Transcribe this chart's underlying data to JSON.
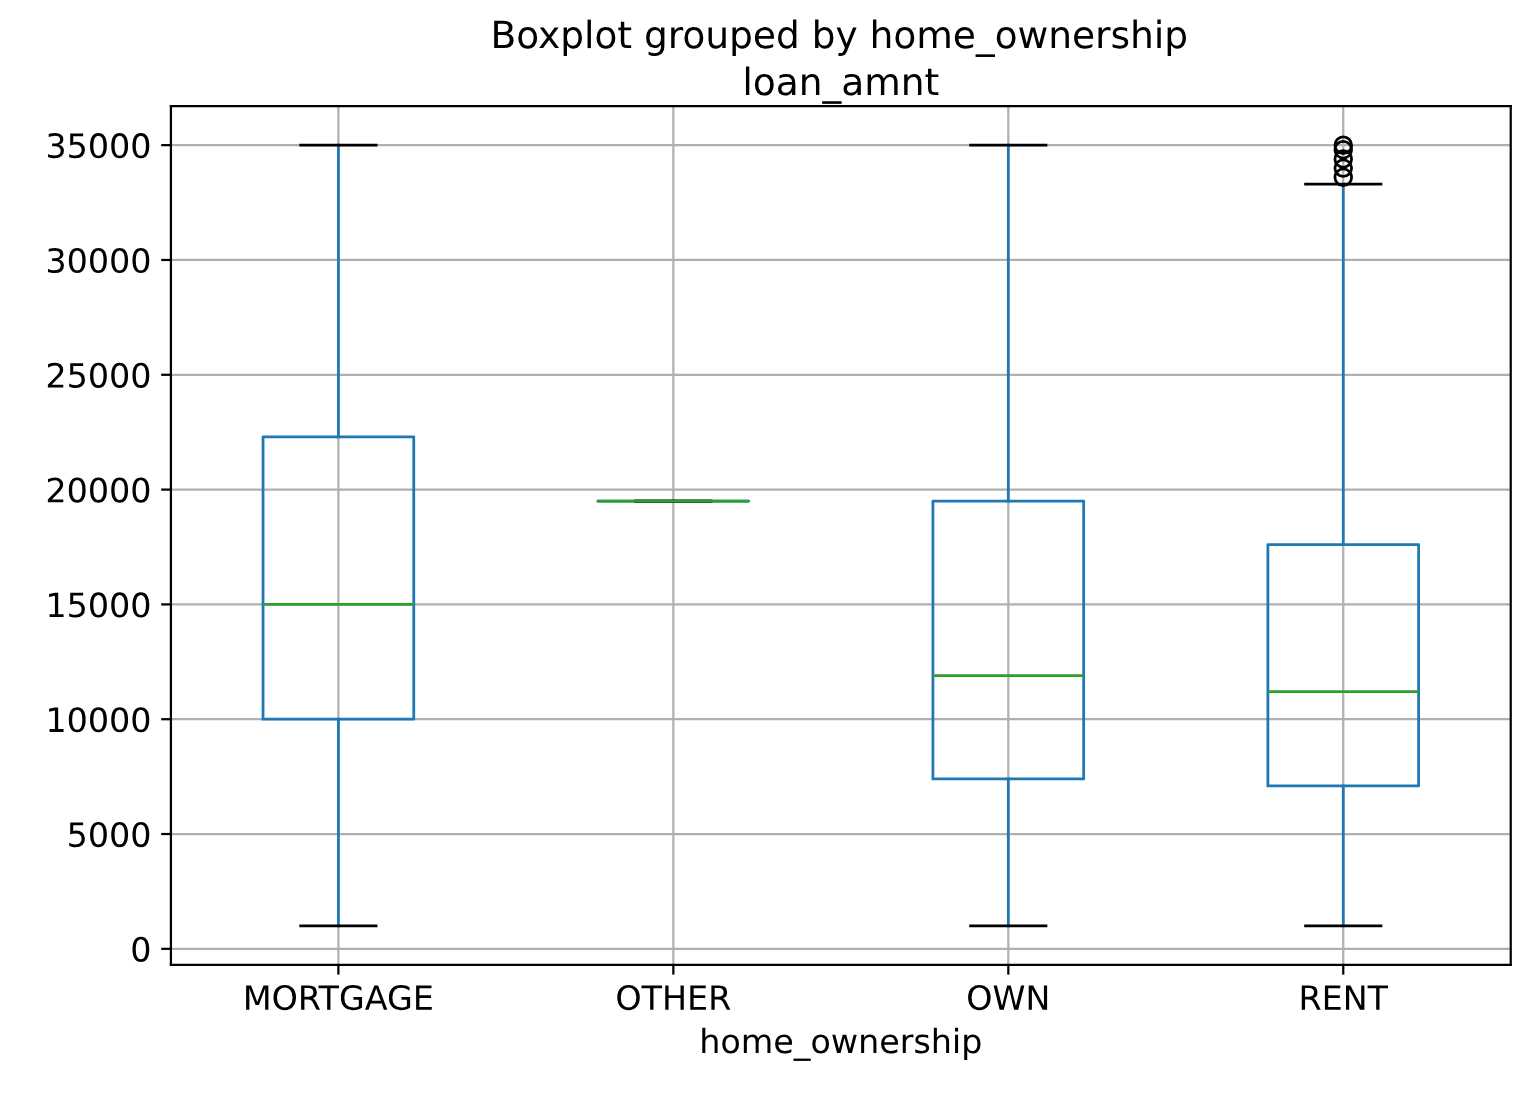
{
  "chart_data": {
    "type": "box",
    "title": "Boxplot grouped by home_ownership",
    "subtitle": "loan_amnt",
    "xlabel": "home_ownership",
    "categories": [
      "MORTGAGE",
      "OTHER",
      "OWN",
      "RENT"
    ],
    "boxes": [
      {
        "low": 1000,
        "q1": 10000,
        "median": 15000,
        "q3": 22300,
        "high": 35000
      },
      {
        "low": 19500,
        "q1": 19500,
        "median": 19500,
        "q3": 19500,
        "high": 19500
      },
      {
        "low": 1000,
        "q1": 7400,
        "median": 11900,
        "q3": 19500,
        "high": 35000
      },
      {
        "low": 1000,
        "q1": 7100,
        "median": 11200,
        "q3": 17600,
        "high": 33300,
        "outliers": [
          33600,
          34000,
          34400,
          34800,
          35000
        ]
      }
    ],
    "color": "#1f77b4",
    "ylim": [
      -700,
      36700
    ],
    "yticks": [
      0,
      5000,
      10000,
      15000,
      20000,
      25000,
      30000,
      35000
    ],
    "grid": true
  }
}
